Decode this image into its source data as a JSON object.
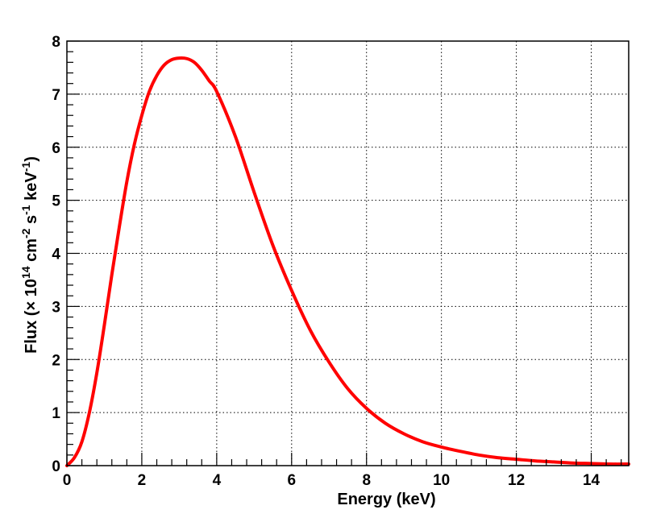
{
  "chart_data": {
    "type": "line",
    "title": "",
    "xlabel": "Energy (keV)",
    "ylabel": {
      "parts": [
        "Flux (",
        "×",
        " 10",
        "14",
        " cm",
        "-2",
        " s",
        "-1",
        " keV",
        "-1",
        ")"
      ]
    },
    "xlim": [
      0,
      15
    ],
    "ylim": [
      0,
      8
    ],
    "xticks": [
      0,
      2,
      4,
      6,
      8,
      10,
      12,
      14
    ],
    "yticks": [
      0,
      1,
      2,
      3,
      4,
      5,
      6,
      7,
      8
    ],
    "xticklabels": [
      "0",
      "2",
      "4",
      "6",
      "8",
      "10",
      "12",
      "14"
    ],
    "yticklabels": [
      "0",
      "1",
      "2",
      "3",
      "4",
      "5",
      "6",
      "7",
      "8"
    ],
    "grid": true,
    "series": [
      {
        "color": "#ff0000",
        "x": [
          0,
          0.2,
          0.4,
          0.6,
          0.8,
          1.0,
          1.2,
          1.4,
          1.6,
          1.8,
          2.0,
          2.2,
          2.4,
          2.6,
          2.8,
          3.0,
          3.2,
          3.4,
          3.6,
          3.8,
          4.0,
          4.5,
          5.0,
          5.5,
          6.0,
          6.5,
          7.0,
          7.5,
          8.0,
          8.5,
          9.0,
          9.5,
          10.0,
          10.5,
          11.0,
          11.5,
          12.0,
          12.5,
          13.0,
          13.5,
          14.0,
          14.5,
          15.0
        ],
        "y": [
          0,
          0.15,
          0.45,
          1.0,
          1.75,
          2.65,
          3.6,
          4.5,
          5.35,
          6.05,
          6.6,
          7.05,
          7.35,
          7.55,
          7.65,
          7.68,
          7.67,
          7.6,
          7.45,
          7.25,
          7.05,
          6.2,
          5.15,
          4.15,
          3.3,
          2.55,
          1.95,
          1.45,
          1.08,
          0.8,
          0.6,
          0.45,
          0.35,
          0.27,
          0.2,
          0.15,
          0.12,
          0.09,
          0.07,
          0.05,
          0.04,
          0.03,
          0.03
        ]
      }
    ]
  }
}
